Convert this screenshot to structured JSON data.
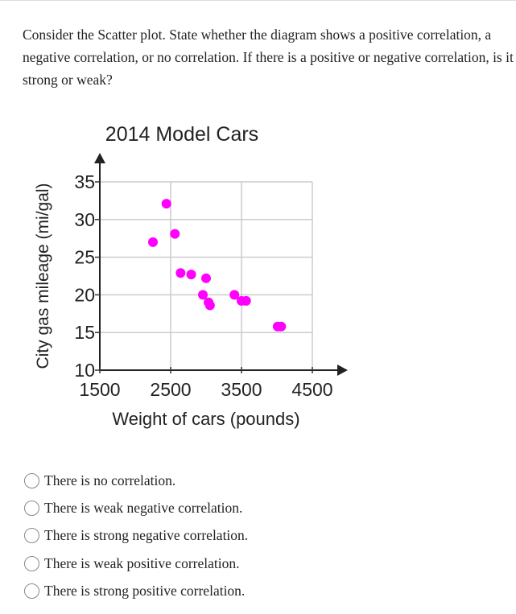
{
  "question": "Consider the Scatter plot.  State whether the diagram shows a positive correlation, a negative correlation, or no correlation.  If there is a positive or negative correlation, is it strong or weak?",
  "chart_data": {
    "type": "scatter",
    "title": "2014 Model Cars",
    "xlabel": "Weight of cars (pounds)",
    "ylabel": "City gas mileage (mi/gal)",
    "xlim": [
      1500,
      4500
    ],
    "ylim": [
      10,
      35
    ],
    "xticks": [
      "1500",
      "2500",
      "3500",
      "4500"
    ],
    "yticks": [
      "10",
      "15",
      "20",
      "25",
      "30",
      "35"
    ],
    "grid": true,
    "point_color": "#ff00ff",
    "points": [
      {
        "x": 2250,
        "y": 27.0
      },
      {
        "x": 2440,
        "y": 32.1
      },
      {
        "x": 2560,
        "y": 28.1
      },
      {
        "x": 2640,
        "y": 22.9
      },
      {
        "x": 2790,
        "y": 22.7
      },
      {
        "x": 2955,
        "y": 20.0
      },
      {
        "x": 3000,
        "y": 22.2
      },
      {
        "x": 3035,
        "y": 19.0
      },
      {
        "x": 3055,
        "y": 18.6
      },
      {
        "x": 3400,
        "y": 20.0
      },
      {
        "x": 3500,
        "y": 19.2
      },
      {
        "x": 3565,
        "y": 19.2
      },
      {
        "x": 4010,
        "y": 15.8
      },
      {
        "x": 4060,
        "y": 15.8
      }
    ]
  },
  "options": [
    {
      "label": "There is no correlation."
    },
    {
      "label": "There is weak negative correlation."
    },
    {
      "label": "There is strong negative correlation."
    },
    {
      "label": "There is weak positive correlation."
    },
    {
      "label": "There is strong positive correlation."
    }
  ]
}
